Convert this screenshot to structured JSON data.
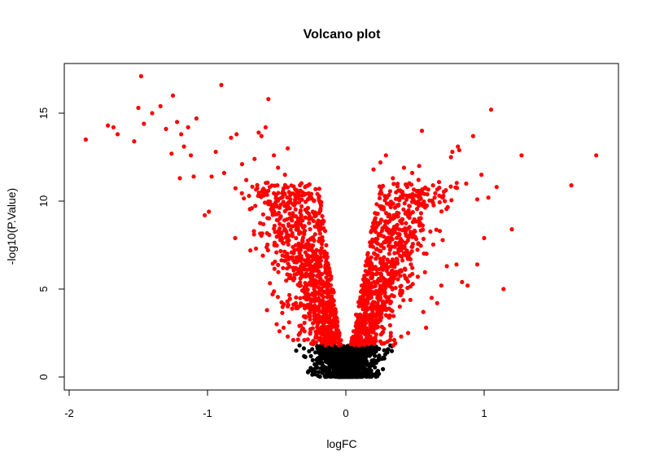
{
  "chart_data": {
    "type": "scatter",
    "title": "Volcano plot",
    "xlabel": "logFC",
    "ylabel": "-log10(P.Value)",
    "xlim": [
      -2.0,
      2.0
    ],
    "ylim": [
      0,
      17.5
    ],
    "x_ticks": [
      -2,
      -1,
      0,
      1
    ],
    "y_ticks": [
      0,
      5,
      10,
      15
    ],
    "grid": false,
    "legend": "none",
    "colors": {
      "significant": "#ff0000",
      "not_significant": "#000000",
      "frame": "#000000"
    },
    "significance_threshold_neglog10p": 1.8,
    "series": [
      {
        "color": "#ff0000",
        "points": [
          [
            -1.88,
            13.5
          ],
          [
            -1.72,
            14.3
          ],
          [
            -1.68,
            14.2
          ],
          [
            -1.65,
            13.8
          ],
          [
            -1.53,
            13.4
          ],
          [
            -1.5,
            15.3
          ],
          [
            -1.48,
            17.1
          ],
          [
            -1.46,
            14.4
          ],
          [
            -1.4,
            15.0
          ],
          [
            -1.34,
            15.4
          ],
          [
            -1.3,
            14.1
          ],
          [
            -1.26,
            12.7
          ],
          [
            -1.25,
            16.0
          ],
          [
            -1.22,
            14.5
          ],
          [
            -1.2,
            11.3
          ],
          [
            -1.19,
            13.8
          ],
          [
            -1.17,
            13.1
          ],
          [
            -1.14,
            14.2
          ],
          [
            -1.12,
            12.6
          ],
          [
            -1.1,
            11.4
          ],
          [
            -1.08,
            14.7
          ],
          [
            -1.02,
            9.2
          ],
          [
            -0.99,
            9.4
          ],
          [
            -0.97,
            11.4
          ],
          [
            -0.94,
            12.8
          ],
          [
            -0.9,
            16.6
          ],
          [
            -0.88,
            11.6
          ],
          [
            -0.83,
            13.6
          ],
          [
            -0.79,
            13.8
          ],
          [
            -0.75,
            12.1
          ],
          [
            -0.72,
            11.2
          ],
          [
            -0.7,
            10.3
          ],
          [
            -0.66,
            12.4
          ],
          [
            -0.63,
            13.9
          ],
          [
            -0.61,
            13.7
          ],
          [
            -0.58,
            14.2
          ],
          [
            -0.56,
            15.8
          ],
          [
            -0.55,
            10.8
          ],
          [
            -0.52,
            12.6
          ],
          [
            -0.49,
            11.9
          ],
          [
            -0.47,
            9.8
          ],
          [
            -0.44,
            11.5
          ],
          [
            -0.42,
            13.0
          ],
          [
            -0.39,
            8.9
          ],
          [
            -0.36,
            9.9
          ],
          [
            -0.8,
            7.9
          ],
          [
            -0.69,
            7.2
          ],
          [
            -0.65,
            7.3
          ],
          [
            -0.6,
            6.9
          ],
          [
            -0.57,
            3.8
          ],
          [
            -0.53,
            4.7
          ],
          [
            -0.5,
            3.0
          ],
          [
            -0.48,
            2.6
          ],
          [
            -0.45,
            2.8
          ],
          [
            -0.42,
            2.3
          ],
          [
            -0.38,
            2.1
          ],
          [
            -0.34,
            2.4
          ],
          [
            -0.3,
            2.1
          ],
          [
            -0.25,
            1.9
          ],
          [
            0.2,
            11.8
          ],
          [
            0.25,
            12.2
          ],
          [
            0.29,
            12.6
          ],
          [
            0.34,
            11.3
          ],
          [
            0.38,
            10.6
          ],
          [
            0.42,
            11.9
          ],
          [
            0.48,
            11.6
          ],
          [
            0.53,
            12.0
          ],
          [
            0.55,
            14.0
          ],
          [
            0.63,
            10.9
          ],
          [
            0.7,
            10.2
          ],
          [
            0.76,
            12.5
          ],
          [
            0.77,
            12.8
          ],
          [
            0.81,
            13.1
          ],
          [
            0.82,
            12.9
          ],
          [
            0.92,
            13.7
          ],
          [
            0.95,
            10.1
          ],
          [
            0.98,
            11.5
          ],
          [
            1.0,
            7.9
          ],
          [
            1.03,
            10.2
          ],
          [
            1.05,
            15.2
          ],
          [
            1.09,
            10.8
          ],
          [
            1.14,
            5.0
          ],
          [
            1.2,
            8.4
          ],
          [
            1.27,
            12.6
          ],
          [
            1.63,
            10.9
          ],
          [
            1.81,
            12.6
          ],
          [
            0.52,
            5.7
          ],
          [
            0.56,
            3.7
          ],
          [
            0.58,
            2.8
          ],
          [
            0.62,
            4.5
          ],
          [
            0.66,
            4.2
          ],
          [
            0.69,
            5.2
          ],
          [
            0.73,
            6.3
          ],
          [
            0.8,
            6.4
          ],
          [
            0.84,
            5.4
          ],
          [
            0.88,
            5.2
          ],
          [
            0.95,
            6.4
          ],
          [
            0.45,
            2.5
          ],
          [
            0.4,
            2.3
          ],
          [
            0.35,
            2.1
          ],
          [
            0.3,
            2.0
          ],
          [
            0.26,
            1.9
          ]
        ]
      },
      {
        "color": "#000000",
        "points": [
          [
            -0.22,
            1.4
          ],
          [
            -0.18,
            1.6
          ],
          [
            -0.15,
            1.2
          ],
          [
            -0.12,
            0.9
          ],
          [
            -0.09,
            0.6
          ],
          [
            -0.06,
            0.4
          ],
          [
            -0.03,
            0.2
          ],
          [
            0.0,
            0.05
          ],
          [
            0.03,
            0.2
          ],
          [
            0.06,
            0.5
          ],
          [
            0.09,
            0.7
          ],
          [
            0.12,
            1.0
          ],
          [
            0.15,
            1.3
          ],
          [
            0.18,
            1.5
          ],
          [
            0.21,
            1.2
          ],
          [
            0.24,
            1.6
          ],
          [
            0.27,
            1.1
          ],
          [
            0.3,
            1.4
          ],
          [
            -0.2,
            0.8
          ],
          [
            0.2,
            0.7
          ]
        ]
      }
    ]
  }
}
